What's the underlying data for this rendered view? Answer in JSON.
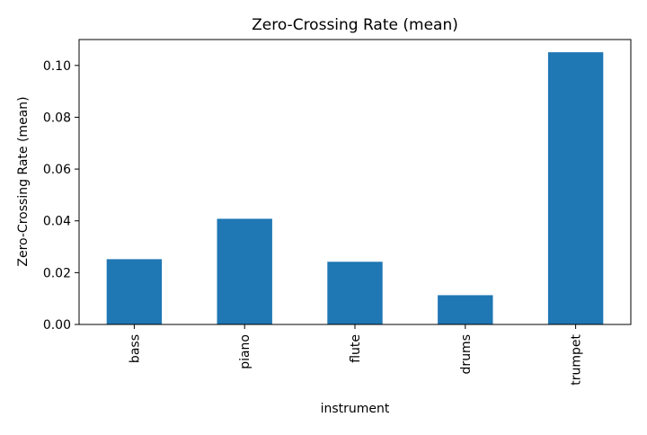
{
  "chart_data": {
    "type": "bar",
    "title": "Zero-Crossing Rate (mean)",
    "xlabel": "instrument",
    "ylabel": "Zero-Crossing Rate (mean)",
    "categories": [
      "bass",
      "piano",
      "flute",
      "drums",
      "trumpet"
    ],
    "values": [
      0.0252,
      0.0408,
      0.0242,
      0.0113,
      0.1051
    ],
    "ylim": [
      0,
      0.11
    ],
    "yticks": [
      0.0,
      0.02,
      0.04,
      0.06,
      0.08,
      0.1
    ],
    "ytick_labels": [
      "0.00",
      "0.02",
      "0.04",
      "0.06",
      "0.08",
      "0.10"
    ],
    "bar_color": "#1f77b4",
    "grid": false,
    "legend": "none"
  }
}
